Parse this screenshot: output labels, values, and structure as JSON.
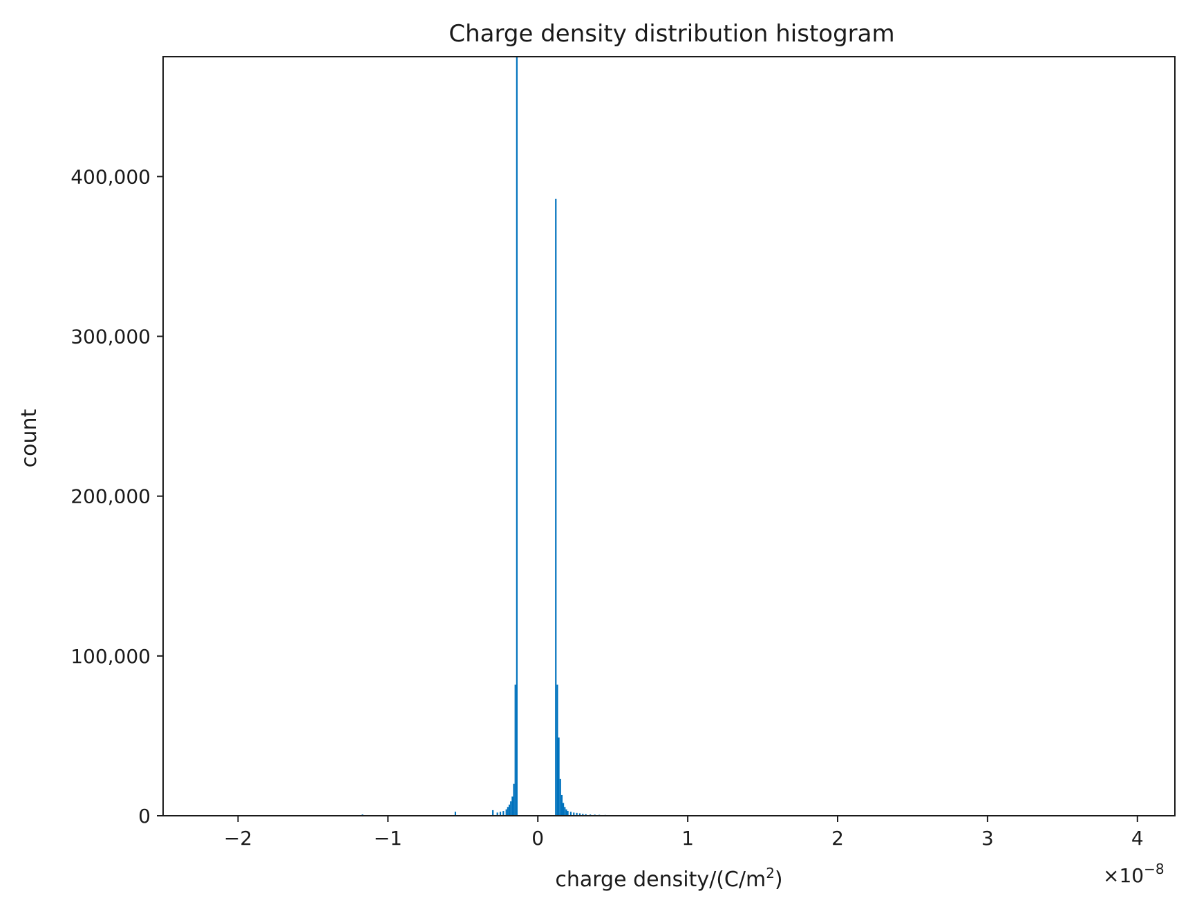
{
  "chart_data": {
    "type": "bar",
    "title": "Charge density distribution histogram",
    "xlabel": "charge density/(C/m",
    "xlabel_sup": "2",
    "xlabel_tail": ")",
    "ylabel": "count",
    "x_offset_label": "×10",
    "x_offset_exp": "−8",
    "xlim": [
      -2.5,
      4.25
    ],
    "ylim": [
      0,
      475000
    ],
    "x_ticks": [
      -2,
      -1,
      0,
      1,
      2,
      3,
      4
    ],
    "x_tick_labels": [
      "−2",
      "−1",
      "0",
      "1",
      "2",
      "3",
      "4"
    ],
    "y_ticks": [
      0,
      100000,
      200000,
      300000,
      400000
    ],
    "y_tick_labels": [
      "0",
      "100,000",
      "200,000",
      "300,000",
      "400,000"
    ],
    "grid": false,
    "color": "#0072bd",
    "bin_width": 0.01,
    "series": [
      {
        "x": [
          -1.17,
          -0.55,
          -0.3,
          -0.27,
          -0.25,
          -0.23,
          -0.21,
          -0.2,
          -0.19,
          -0.18,
          -0.17,
          -0.16,
          -0.15,
          -0.14,
          -0.13,
          -0.12,
          0.12,
          0.13,
          0.14,
          0.15,
          0.16,
          0.17,
          0.18,
          0.19,
          0.2,
          0.22,
          0.24,
          0.26,
          0.28,
          0.3,
          0.32,
          0.35,
          0.38,
          0.41,
          0.45
        ],
        "values": [
          800,
          2500,
          3500,
          2000,
          2500,
          3000,
          4000,
          5500,
          7000,
          9000,
          12000,
          20000,
          82000,
          475000,
          0,
          0,
          386000,
          82000,
          49000,
          23000,
          13000,
          8000,
          5500,
          4000,
          3000,
          2500,
          2000,
          1800,
          1500,
          1200,
          1000,
          800,
          700,
          600,
          500
        ]
      }
    ]
  }
}
